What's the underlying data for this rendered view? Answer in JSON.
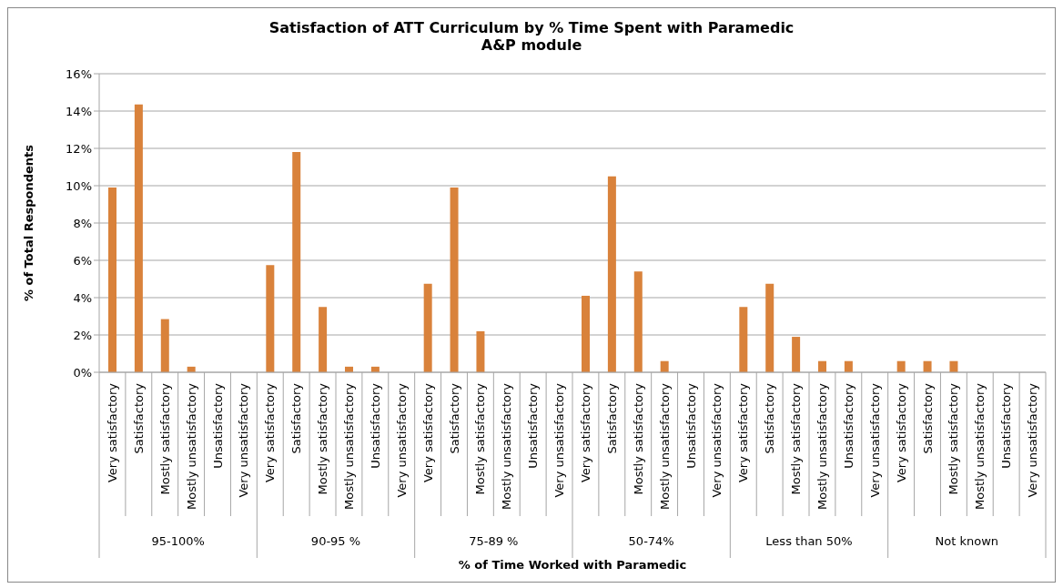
{
  "chart_data": {
    "type": "bar",
    "title": "Satisfaction of ATT Curriculum by % Time Spent with Paramedic\nA&P module",
    "xlabel": "% of Time Worked with Paramedic",
    "ylabel": "% of Total Respondents",
    "categories": [
      "Very satisfactory",
      "Satisfactory",
      "Mostly satisfactory",
      "Mostly unsatisfactory",
      "Unsatisfactory",
      "Very unsatisfactory",
      "Very satisfactory",
      "Satisfactory",
      "Mostly satisfactory",
      "Mostly unsatisfactory",
      "Unsatisfactory",
      "Very unsatisfactory",
      "Very satisfactory",
      "Satisfactory",
      "Mostly satisfactory",
      "Mostly unsatisfactory",
      "Unsatisfactory",
      "Very unsatisfactory",
      "Very satisfactory",
      "Satisfactory",
      "Mostly satisfactory",
      "Mostly unsatisfactory",
      "Unsatisfactory",
      "Very unsatisfactory",
      "Very satisfactory",
      "Satisfactory",
      "Mostly satisfactory",
      "Mostly unsatisfactory",
      "Unsatisfactory",
      "Very unsatisfactory",
      "Very satisfactory",
      "Satisfactory",
      "Mostly satisfactory",
      "Mostly unsatisfactory",
      "Unsatisfactory",
      "Very unsatisfactory"
    ],
    "values": [
      9.9,
      14.35,
      2.85,
      0.3,
      0,
      0,
      5.75,
      11.8,
      3.5,
      0.3,
      0.3,
      0,
      4.75,
      9.9,
      2.2,
      0,
      0,
      0,
      4.1,
      10.5,
      5.4,
      0.6,
      0,
      0,
      3.5,
      4.75,
      1.9,
      0.6,
      0.6,
      0,
      0.6,
      0.6,
      0.6,
      0,
      0,
      0
    ],
    "color": "#d9823b",
    "annotations": [
      "95-100%",
      "90-95 %",
      "75-89 %",
      "50-74%",
      "Less than 50%",
      "Not known"
    ],
    "ylim": [
      0,
      16
    ],
    "yticks": [
      {
        "value": 0,
        "label": "0%"
      },
      {
        "value": 2,
        "label": "2%"
      },
      {
        "value": 4,
        "label": "4%"
      },
      {
        "value": 6,
        "label": "6%"
      },
      {
        "value": 8,
        "label": "8%"
      },
      {
        "value": 10,
        "label": "10%"
      },
      {
        "value": 12,
        "label": "12%"
      },
      {
        "value": 14,
        "label": "14%"
      },
      {
        "value": 16,
        "label": "16%"
      }
    ],
    "grid": "y"
  }
}
